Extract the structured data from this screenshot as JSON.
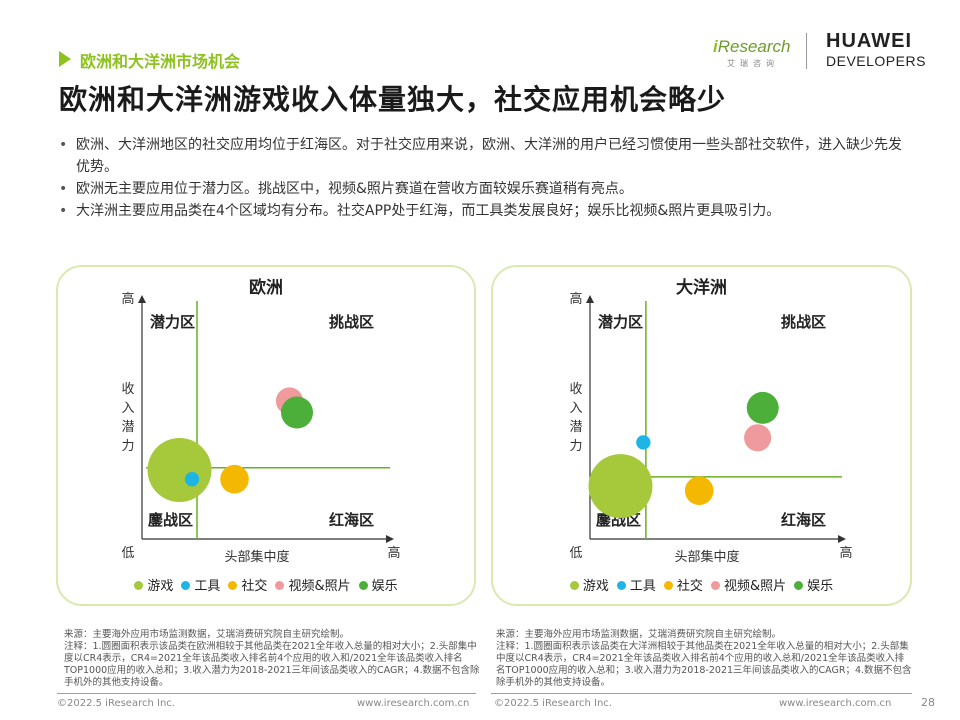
{
  "header": {
    "section_label": "欧洲和大洋洲市场机会",
    "title": "欧洲和大洋洲游戏收入体量独大，社交应用机会略少",
    "logo_iresearch_i": "i",
    "logo_iresearch_rest": "Research",
    "logo_iresearch_sub": "艾瑞咨询",
    "logo_huawei": "HUAWEI",
    "logo_huawei_sub": "DEVELOPERS"
  },
  "bullets": [
    "欧洲、大洋洲地区的社交应用均位于红海区。对于社交应用来说，欧洲、大洋洲的用户已经习惯使用一些头部社交软件，进入缺少先发优势。",
    "欧洲无主要应用位于潜力区。挑战区中，视频&照片赛道在营收方面较娱乐赛道稍有亮点。",
    "大洋洲主要应用品类在4个区域均有分布。社交APP处于红海，而工具类发展良好；娱乐比视频&照片更具吸引力。"
  ],
  "colors": {
    "accent": "#8dc21f",
    "panel_border": "#d9e9b0",
    "axis": "#333333",
    "divider": "#6ab023"
  },
  "labels": {
    "zone_potential": "潜力区",
    "zone_challenge": "挑战区",
    "zone_declining": "鏖战区",
    "zone_redsea": "红海区",
    "y_high": "高",
    "x_low": "低",
    "x_high": "高",
    "y_axis_chars": [
      "收",
      "入",
      "潜",
      "力"
    ],
    "x_axis": "头部集中度"
  },
  "chart_data": [
    {
      "type": "scatter",
      "title": "欧洲",
      "xlabel": "头部集中度",
      "ylabel": "收入潜力",
      "xlim": [
        0,
        100
      ],
      "ylim": [
        0,
        100
      ],
      "dividers": {
        "x": 22,
        "y": 31
      },
      "series": [
        {
          "name": "游戏",
          "color": "#a5c93a",
          "x": [
            15
          ],
          "y": [
            30
          ],
          "size": [
            100
          ]
        },
        {
          "name": "工具",
          "color": "#1eb4e6",
          "x": [
            20
          ],
          "y": [
            26
          ],
          "size": [
            5
          ]
        },
        {
          "name": "社交",
          "color": "#f5b800",
          "x": [
            37
          ],
          "y": [
            26
          ],
          "size": [
            20
          ]
        },
        {
          "name": "视频&照片",
          "color": "#ef9a9c",
          "x": [
            59
          ],
          "y": [
            60
          ],
          "size": [
            18
          ]
        },
        {
          "name": "娱乐",
          "color": "#4caf3a",
          "x": [
            62
          ],
          "y": [
            55
          ],
          "size": [
            25
          ]
        }
      ]
    },
    {
      "type": "scatter",
      "title": "大洋洲",
      "xlabel": "头部集中度",
      "ylabel": "收入潜力",
      "xlim": [
        0,
        100
      ],
      "ylim": [
        0,
        100
      ],
      "dividers": {
        "x": 22,
        "y": 27
      },
      "series": [
        {
          "name": "游戏",
          "color": "#a5c93a",
          "x": [
            12
          ],
          "y": [
            23
          ],
          "size": [
            100
          ]
        },
        {
          "name": "工具",
          "color": "#1eb4e6",
          "x": [
            21
          ],
          "y": [
            42
          ],
          "size": [
            5
          ]
        },
        {
          "name": "社交",
          "color": "#f5b800",
          "x": [
            43
          ],
          "y": [
            21
          ],
          "size": [
            20
          ]
        },
        {
          "name": "视频&照片",
          "color": "#ef9a9c",
          "x": [
            66
          ],
          "y": [
            44
          ],
          "size": [
            18
          ]
        },
        {
          "name": "娱乐",
          "color": "#4caf3a",
          "x": [
            68
          ],
          "y": [
            57
          ],
          "size": [
            25
          ]
        }
      ]
    }
  ],
  "notes": {
    "left": "来源：主要海外应用市场监测数据，艾瑞消费研究院自主研究绘制。\n注释：1.圆圈面积表示该品类在欧洲相较于其他品类在2021全年收入总量的相对大小；2.头部集中度以CR4表示，CR4=2021全年该品类收入排名前4个应用的收入和/2021全年该品类收入排名TOP1000应用的收入总和；3.收入潜力为2018-2021三年间该品类收入的CAGR；4.数据不包含除手机外的其他支持设备。",
    "right": "来源：主要海外应用市场监测数据，艾瑞消费研究院自主研究绘制。\n注释：1.圆圈面积表示该品类在大洋洲相较于其他品类在2021全年收入总量的相对大小；2.头部集中度以CR4表示，CR4=2021全年该品类收入排名前4个应用的收入总和/2021全年该品类收入排名TOP1000应用的收入总和；3.收入潜力为2018-2021三年间该品类收入的CAGR；4.数据不包含除手机外的其他支持设备。"
  },
  "footer": {
    "copyright": "©2022.5 iResearch Inc.",
    "url": "www.iresearch.com.cn",
    "page_number": "28"
  }
}
